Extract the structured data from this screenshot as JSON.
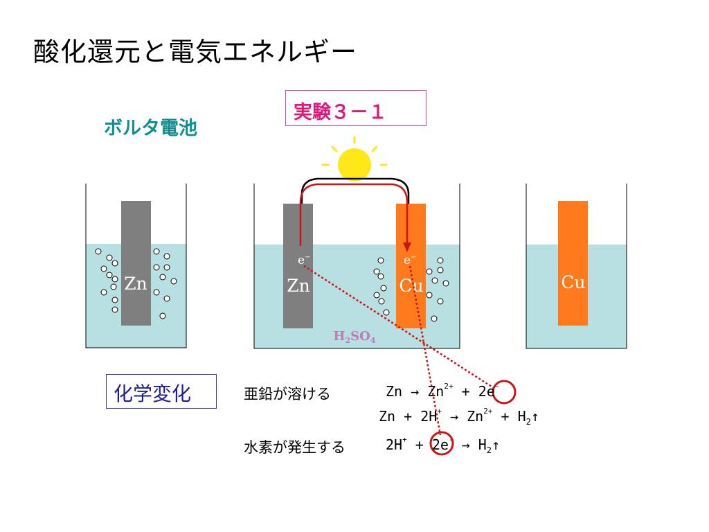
{
  "title": "酸化還元と電気エネルギー",
  "subtitle": "ボルタ電池",
  "experiment_label": "実験３－１",
  "diagram": {
    "left_beaker_electrode": "Zn",
    "middle_left_electrode": "Zn",
    "middle_right_electrode": "Cu",
    "right_beaker_electrode": "Cu",
    "electron_label_left": "e",
    "electron_label_right": "e",
    "electron_superscript": "−",
    "electrolyte": "H2SO4",
    "colors": {
      "solution": "#b8dfe1",
      "zinc": "#7f7f7f",
      "copper": "#ff7a1c",
      "sun": "#ffe81a",
      "wire": "#000000",
      "current_arrow": "#cc1414",
      "dotted_line": "#cc1414"
    }
  },
  "chemistry_label": "化学変化",
  "reactions": [
    {
      "description": "亜鉛が溶ける",
      "lhs": "Zn",
      "arrow": "→",
      "rhs_ion": "Zn",
      "rhs_ion_charge": "2+",
      "plus": "+",
      "electrons": "2e",
      "electron_charge": "-"
    },
    {
      "description": "",
      "overall": {
        "zn": "Zn",
        "plus1": "+",
        "h": "2H",
        "h_charge": "+",
        "arrow": "→",
        "zn_ion": "Zn",
        "zn_charge": "2+",
        "plus2": "+",
        "h2": "H",
        "h2_sub": "2",
        "gas": "↑"
      }
    },
    {
      "description": "水素が発生する",
      "lhs_h": "2H",
      "lhs_h_charge": "+",
      "plus": "+",
      "electrons": "2e",
      "electron_charge": "-",
      "arrow": "→",
      "product": "H",
      "product_sub": "2",
      "gas": "↑"
    }
  ]
}
